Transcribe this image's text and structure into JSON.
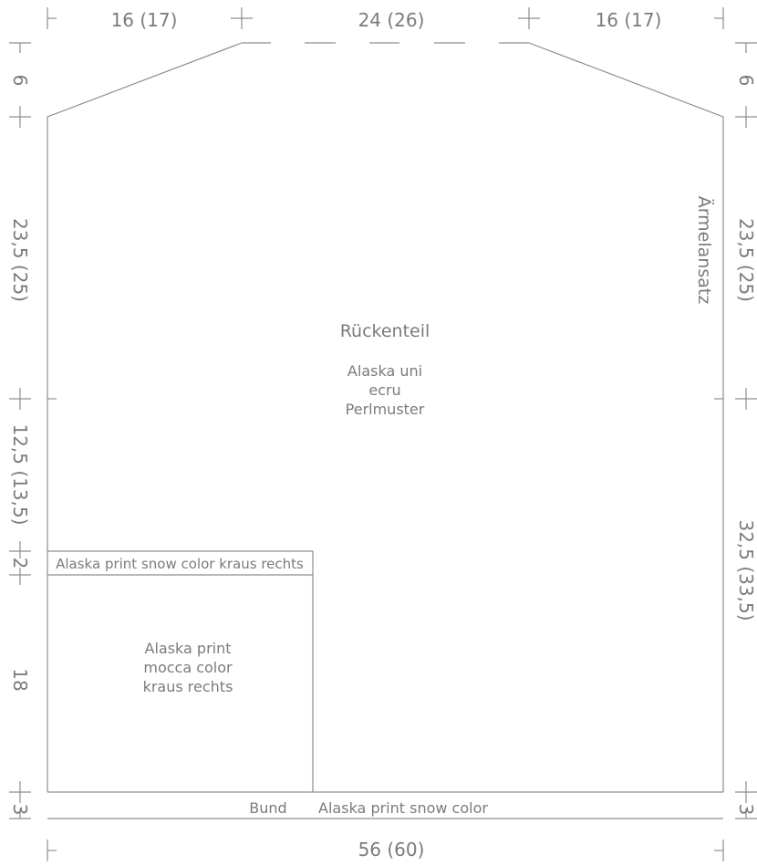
{
  "dimensions": {
    "top_left": "16 (17)",
    "top_center": "24 (26)",
    "top_right": "16 (17)",
    "bottom": "56 (60)",
    "left_shoulder": "6",
    "left_armhole": "23,5 (25)",
    "left_upper": "12,5 (13,5)",
    "left_stripe": "2",
    "left_lower": "18",
    "left_band": "3",
    "right_shoulder": "6",
    "right_armhole": "23,5 (25)",
    "right_body": "32,5 (33,5)",
    "right_band": "3"
  },
  "labels": {
    "piece_name": "Rückenteil",
    "main_yarn_line1": "Alaska uni",
    "main_yarn_line2": "ecru",
    "main_yarn_line3": "Perlmuster",
    "sleeve_marker": "Ärmelansatz",
    "stripe": "Alaska print snow color kraus rechts",
    "lower_line1": "Alaska print",
    "lower_line2": "mocca color",
    "lower_line3": "kraus rechts",
    "band_name": "Bund",
    "band_yarn": "Alaska print snow color"
  }
}
